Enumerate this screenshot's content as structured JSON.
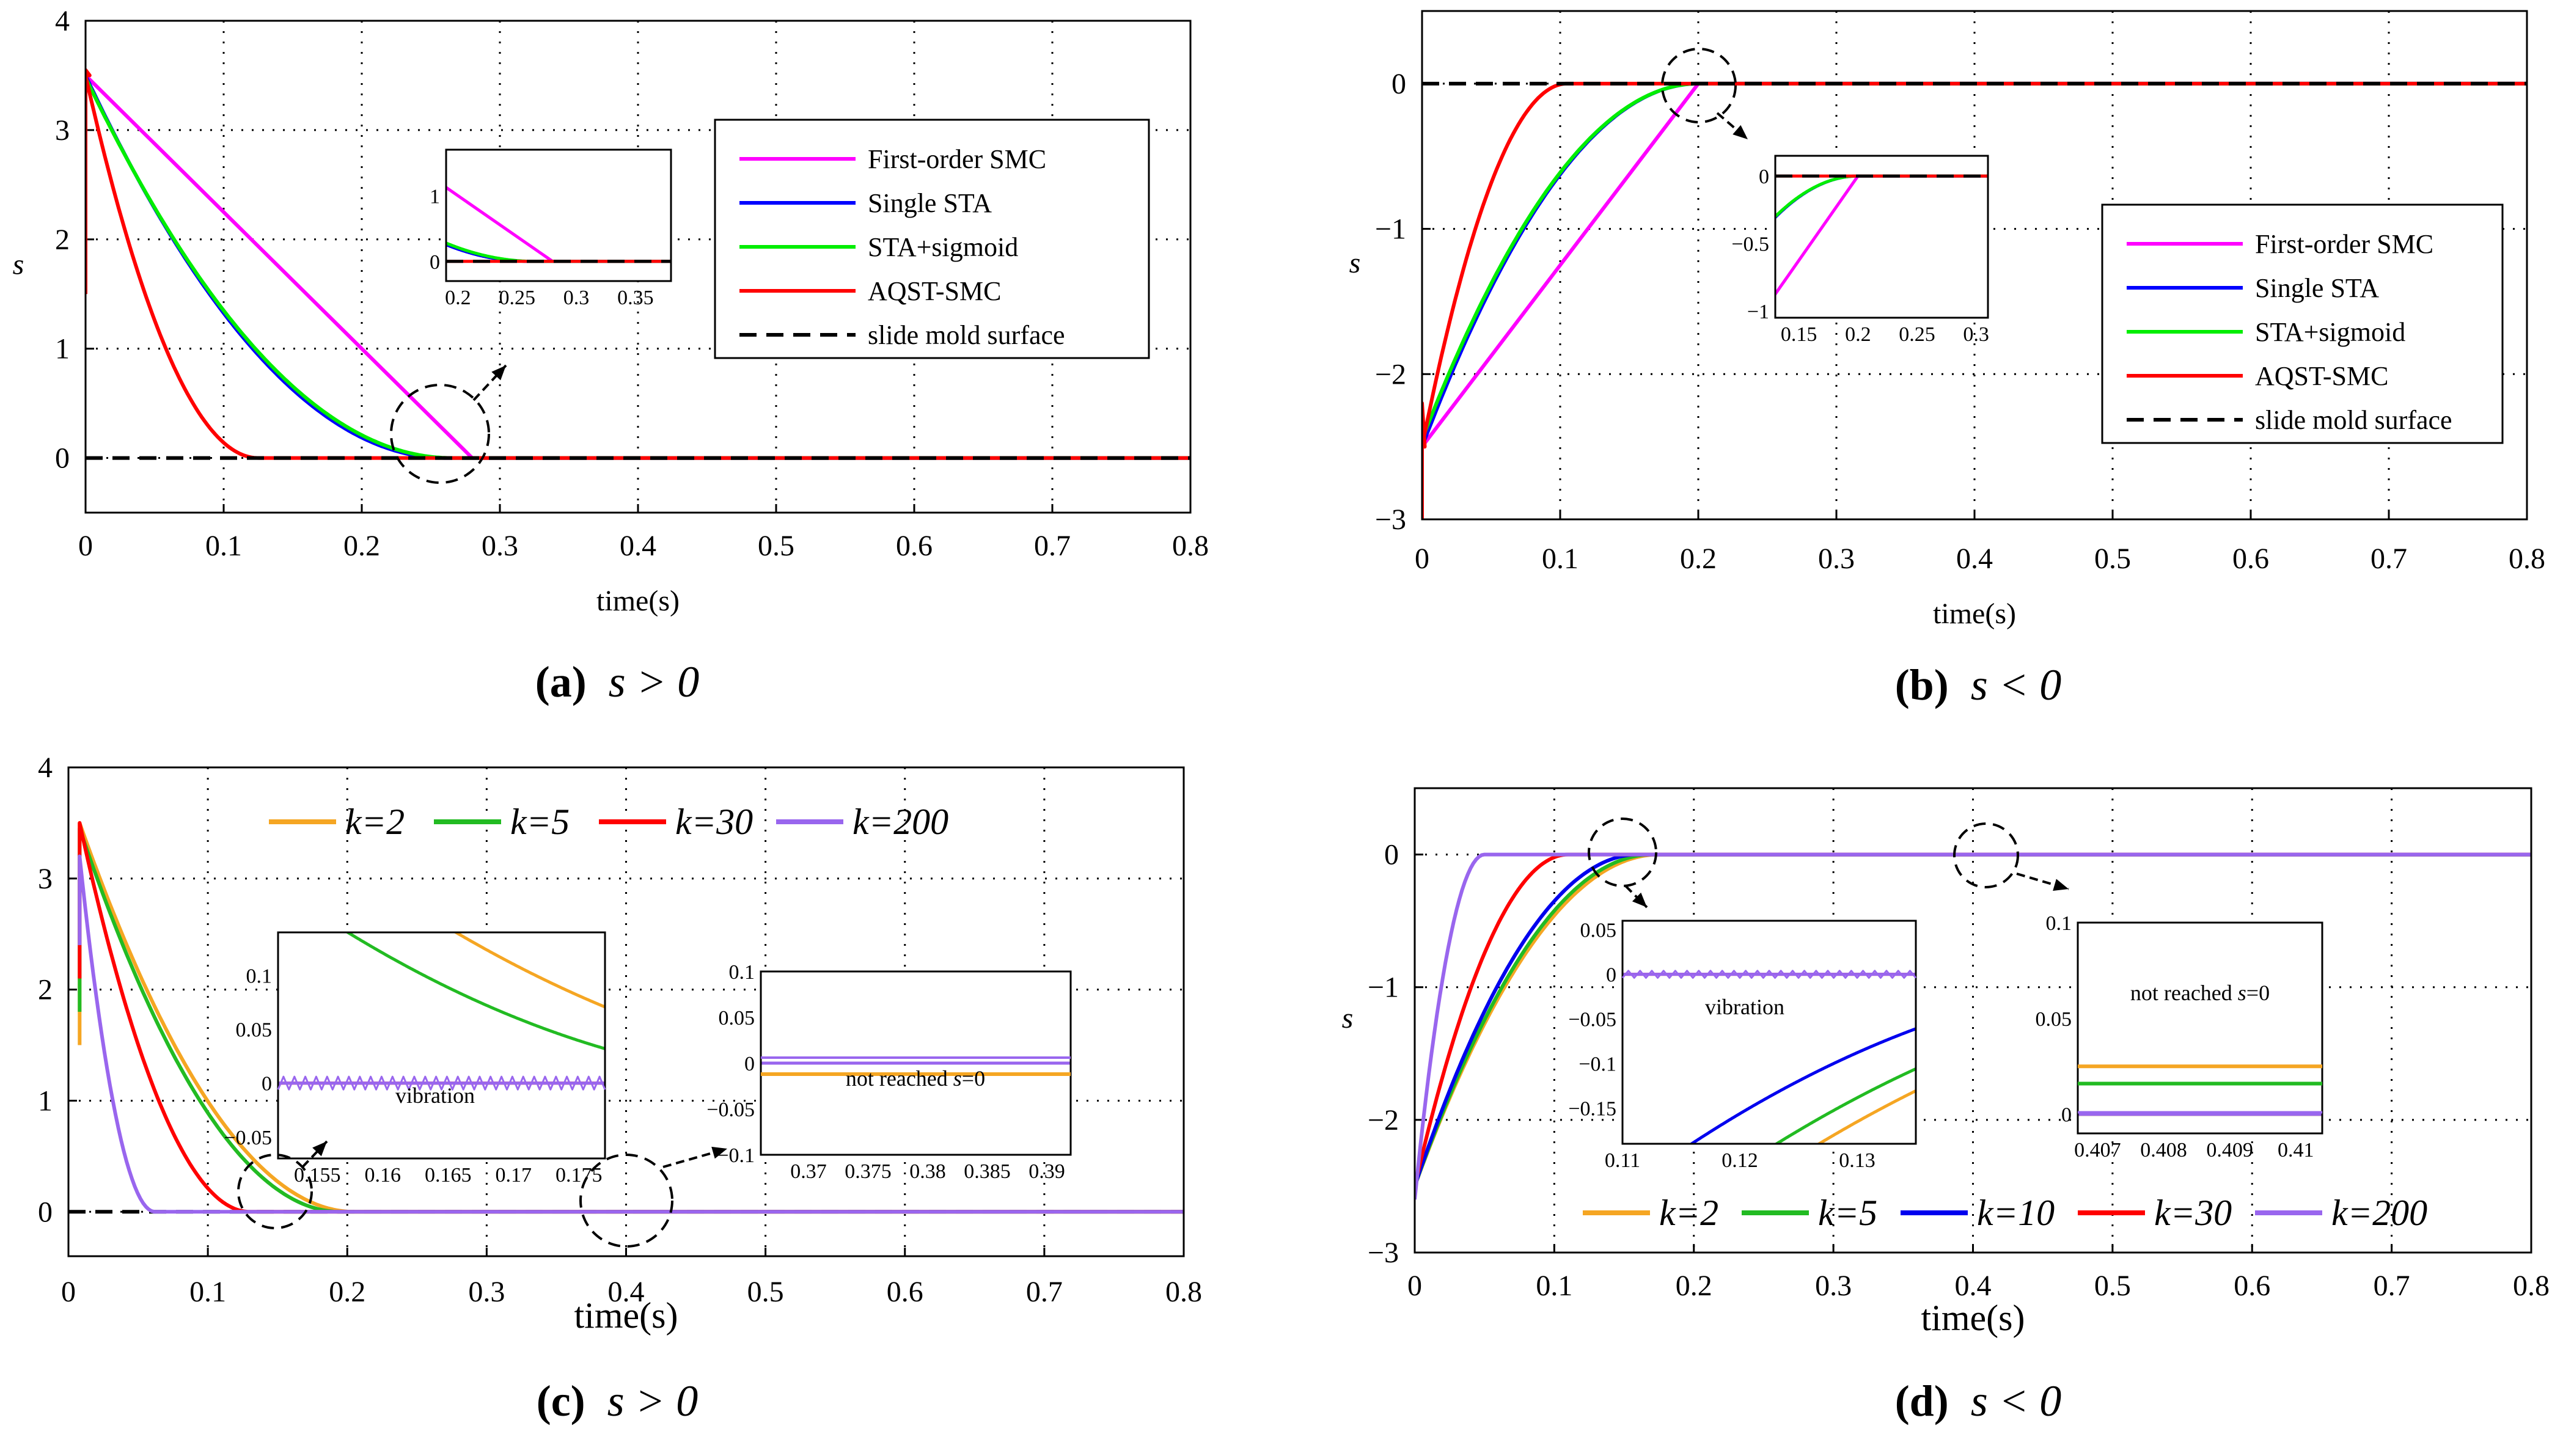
{
  "figure": {
    "panel_ids": [
      "a",
      "b",
      "c",
      "d"
    ]
  },
  "chart_data": [
    {
      "id": "a",
      "type": "line",
      "caption": {
        "letter": "(a)",
        "cond": "s > 0"
      },
      "xlabel": "time(s)",
      "ylabel": "s",
      "xlim": [
        0,
        0.8
      ],
      "ylim": [
        -0.5,
        4
      ],
      "xticks": [
        0,
        0.1,
        0.2,
        0.3,
        0.4,
        0.5,
        0.6,
        0.7,
        0.8
      ],
      "xtick_labels": [
        "0",
        "0.1",
        "0.2",
        "0.3",
        "0.4",
        "0.5",
        "0.6",
        "0.7",
        "0.8"
      ],
      "yticks": [
        0,
        1,
        2,
        3,
        4
      ],
      "ytick_labels": [
        "0",
        "1",
        "2",
        "3",
        "4"
      ],
      "grid": true,
      "legend_position": "upper-right",
      "series": [
        {
          "name": "First-order SMC",
          "color": "#ff00ff",
          "x": [
            0,
            0.28,
            0.8
          ],
          "y": [
            3.5,
            0,
            0
          ]
        },
        {
          "name": "Single STA",
          "color": "#0000ff",
          "curve": "quad",
          "t_end": 0.26,
          "amp": 3.5
        },
        {
          "name": "STA+sigmoid",
          "color": "#00ee00",
          "curve": "quad",
          "t_end": 0.265,
          "amp": 3.48
        },
        {
          "name": "AQST-SMC",
          "color": "#ff0000",
          "curve": "quad",
          "t_end": 0.125,
          "amp": 3.5,
          "start_x": [
            0,
            0,
            0.003
          ],
          "start_y": [
            1.5,
            3.55,
            3.5
          ]
        },
        {
          "name": "slide mold surface",
          "color": "#000000",
          "dashed": true,
          "x": [
            0,
            0.8
          ],
          "y": [
            0,
            0
          ]
        }
      ],
      "inset": {
        "xlim": [
          0.19,
          0.38
        ],
        "ylim": [
          -0.3,
          1.7
        ],
        "xticks": [
          0.2,
          0.25,
          0.3,
          0.35
        ],
        "xtick_labels": [
          "0.2",
          "0.25",
          "0.3",
          "0.35"
        ],
        "yticks": [
          0,
          1
        ],
        "ytick_labels": [
          "0",
          "1"
        ]
      }
    },
    {
      "id": "b",
      "type": "line",
      "caption": {
        "letter": "(b)",
        "cond": "s < 0"
      },
      "xlabel": "time(s)",
      "ylabel": "s",
      "xlim": [
        0,
        0.8
      ],
      "ylim": [
        -3,
        0.5
      ],
      "xticks": [
        0,
        0.1,
        0.2,
        0.3,
        0.4,
        0.5,
        0.6,
        0.7,
        0.8
      ],
      "xtick_labels": [
        "0",
        "0.1",
        "0.2",
        "0.3",
        "0.4",
        "0.5",
        "0.6",
        "0.7",
        "0.8"
      ],
      "yticks": [
        -3,
        -2,
        -1,
        0
      ],
      "ytick_labels": [
        "−3",
        "−2",
        "−1",
        "0"
      ],
      "grid": true,
      "legend_position": "lower-right",
      "series": [
        {
          "name": "First-order SMC",
          "color": "#ff00ff",
          "x": [
            0,
            0.2,
            0.8
          ],
          "y": [
            -2.5,
            0,
            0
          ]
        },
        {
          "name": "Single STA",
          "color": "#0000ff",
          "curve": "quad",
          "t_end": 0.2,
          "amp": -2.5
        },
        {
          "name": "STA+sigmoid",
          "color": "#00ee00",
          "curve": "quad",
          "t_end": 0.2,
          "amp": -2.45
        },
        {
          "name": "AQST-SMC",
          "color": "#ff0000",
          "curve": "quad",
          "t_end": 0.105,
          "amp": -2.5,
          "start_x": [
            0,
            0,
            0.002
          ],
          "start_y": [
            -3,
            -2.2,
            -2.5
          ]
        },
        {
          "name": "slide mold surface",
          "color": "#000000",
          "dashed": true,
          "x": [
            0,
            0.8
          ],
          "y": [
            0,
            0
          ]
        }
      ],
      "inset": {
        "xlim": [
          0.13,
          0.31
        ],
        "ylim": [
          -1.05,
          0.15
        ],
        "xticks": [
          0.15,
          0.2,
          0.25,
          0.3
        ],
        "xtick_labels": [
          "0.15",
          "0.2",
          "0.25",
          "0.3"
        ],
        "yticks": [
          -1,
          -0.5,
          0
        ],
        "ytick_labels": [
          "−1",
          "−0.5",
          "0"
        ]
      }
    },
    {
      "id": "c",
      "type": "line",
      "caption": {
        "letter": "(c)",
        "cond": "s > 0"
      },
      "xlabel": "time(s)",
      "ylabel": "",
      "xlim": [
        0,
        0.8
      ],
      "ylim": [
        -0.4,
        4
      ],
      "xticks": [
        0,
        0.1,
        0.2,
        0.3,
        0.4,
        0.5,
        0.6,
        0.7,
        0.8
      ],
      "xtick_labels": [
        "0",
        "0.1",
        "0.2",
        "0.3",
        "0.4",
        "0.5",
        "0.6",
        "0.7",
        "0.8"
      ],
      "yticks": [
        0,
        1,
        2,
        3,
        4
      ],
      "ytick_labels": [
        "0",
        "1",
        "2",
        "3",
        "4"
      ],
      "grid": true,
      "legend_position": "top",
      "series": [
        {
          "name": "k=2",
          "color": "#f5a623",
          "curve": "quad",
          "t_end": 0.205,
          "amp": 3.5,
          "offset": 0.008
        },
        {
          "name": "k=5",
          "color": "#22bb22",
          "curve": "quad",
          "t_end": 0.195,
          "amp": 3.45,
          "offset": 0.008
        },
        {
          "name": "k=30",
          "color": "#ff0000",
          "curve": "quad",
          "t_end": 0.13,
          "amp": 3.5,
          "offset": 0.008
        },
        {
          "name": "k=200",
          "color": "#9966ee",
          "curve": "quad",
          "t_end": 0.062,
          "amp": 3.2,
          "offset": 0.008
        }
      ],
      "inset_left": {
        "note": "vibration",
        "xlim": [
          0.152,
          0.177
        ],
        "ylim": [
          -0.07,
          0.14
        ],
        "xticks": [
          0.155,
          0.16,
          0.165,
          0.17,
          0.175
        ],
        "xtick_labels": [
          "0.155",
          "0.16",
          "0.165",
          "0.17",
          "0.175"
        ],
        "yticks": [
          -0.05,
          0,
          0.05,
          0.1
        ],
        "ytick_labels": [
          "−0.05",
          "0",
          "0.05",
          "0.1"
        ]
      },
      "inset_right": {
        "note_prefix": "not reached ",
        "note_var": "s",
        "note_suffix": "=0",
        "xlim": [
          0.366,
          0.392
        ],
        "ylim": [
          -0.1,
          0.1
        ],
        "xticks": [
          0.37,
          0.375,
          0.38,
          0.385,
          0.39
        ],
        "xtick_labels": [
          "0.37",
          "0.375",
          "0.38",
          "0.385",
          "0.39"
        ],
        "yticks": [
          -0.1,
          -0.05,
          0,
          0.05,
          0.1
        ],
        "ytick_labels": [
          "−0.1",
          "−0.05",
          "0",
          "0.05",
          "0.1"
        ]
      }
    },
    {
      "id": "d",
      "type": "line",
      "caption": {
        "letter": "(d)",
        "cond": "s < 0"
      },
      "xlabel": "time(s)",
      "ylabel": "s",
      "xlim": [
        0,
        0.8
      ],
      "ylim": [
        -3,
        0.5
      ],
      "xticks": [
        0,
        0.1,
        0.2,
        0.3,
        0.4,
        0.5,
        0.6,
        0.7,
        0.8
      ],
      "xtick_labels": [
        "0",
        "0.1",
        "0.2",
        "0.3",
        "0.4",
        "0.5",
        "0.6",
        "0.7",
        "0.8"
      ],
      "yticks": [
        -3,
        -2,
        -1,
        0
      ],
      "ytick_labels": [
        "−3",
        "−2",
        "−1",
        "0"
      ],
      "grid": true,
      "legend_position": "bottom",
      "series": [
        {
          "name": "k=2",
          "color": "#f5a623",
          "curve": "quad",
          "t_end": 0.175,
          "amp": -2.5
        },
        {
          "name": "k=5",
          "color": "#22bb22",
          "curve": "quad",
          "t_end": 0.17,
          "amp": -2.5
        },
        {
          "name": "k=10",
          "color": "#0000ee",
          "curve": "quad",
          "t_end": 0.16,
          "amp": -2.5
        },
        {
          "name": "k=30",
          "color": "#ff0000",
          "curve": "quad",
          "t_end": 0.11,
          "amp": -2.5
        },
        {
          "name": "k=200",
          "color": "#9966ee",
          "curve": "quad",
          "t_end": 0.05,
          "amp": -2.6
        }
      ],
      "inset_left": {
        "note": "vibration",
        "xlim": [
          0.11,
          0.135
        ],
        "ylim": [
          -0.19,
          0.06
        ],
        "xticks": [
          0.11,
          0.12,
          0.13
        ],
        "xtick_labels": [
          "0.11",
          "0.12",
          "0.13"
        ],
        "yticks": [
          -0.15,
          -0.1,
          -0.05,
          0,
          0.05
        ],
        "ytick_labels": [
          "−0.15",
          "−0.1",
          "−0.05",
          "0",
          "0.05"
        ]
      },
      "inset_right": {
        "note_prefix": "not reached ",
        "note_var": "s",
        "note_suffix": "=0",
        "xlim": [
          0.4067,
          0.4104
        ],
        "ylim": [
          -0.01,
          0.1
        ],
        "xticks": [
          0.407,
          0.408,
          0.409,
          0.41
        ],
        "xtick_labels": [
          "0.407",
          "0.408",
          "0.409",
          "0.41"
        ],
        "yticks": [
          0,
          0.05,
          0.1
        ],
        "ytick_labels": [
          "0",
          "0.05",
          "0.1"
        ]
      }
    }
  ]
}
